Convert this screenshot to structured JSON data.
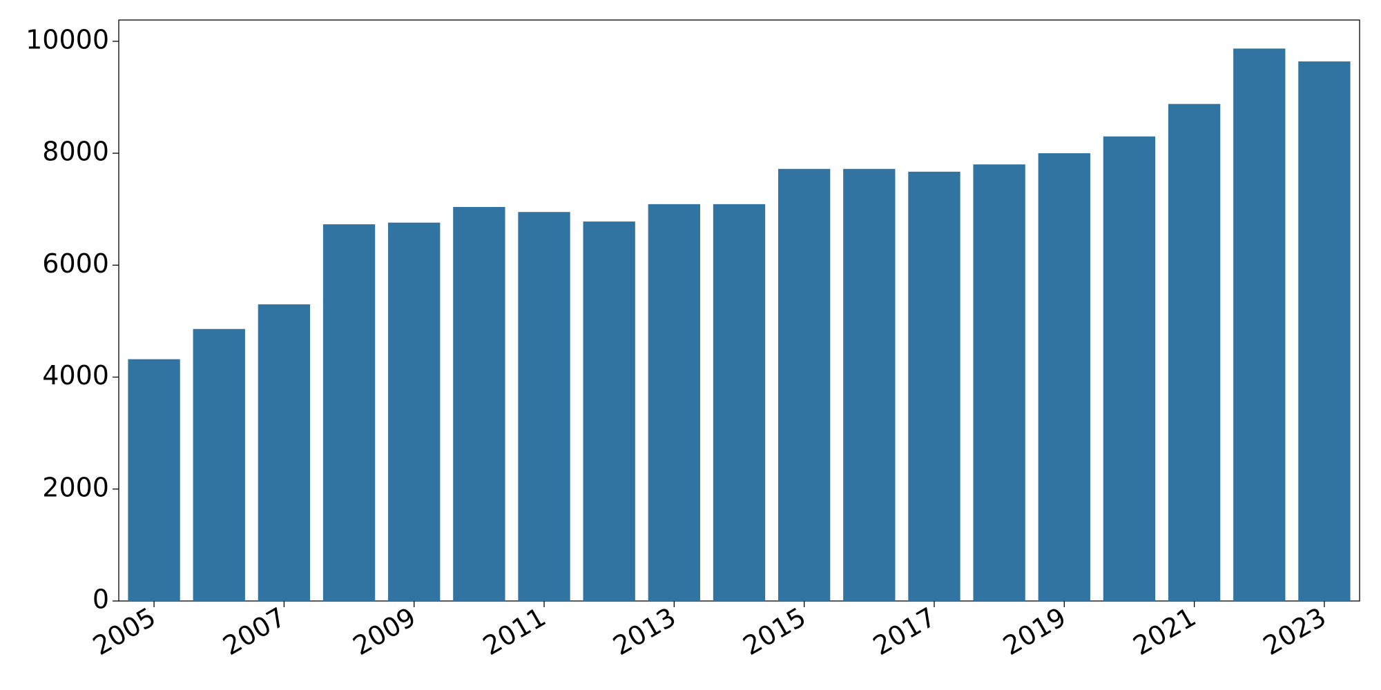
{
  "chart_data": {
    "type": "bar",
    "categories": [
      "2005",
      null,
      "2007",
      null,
      "2009",
      null,
      "2011",
      null,
      "2013",
      null,
      "2015",
      null,
      "2017",
      null,
      "2019",
      null,
      "2021",
      null,
      "2023"
    ],
    "values": [
      4320,
      4860,
      5300,
      6730,
      6760,
      7040,
      6950,
      6780,
      7090,
      7090,
      7720,
      7720,
      7670,
      7800,
      8000,
      8300,
      8880,
      9870,
      9640
    ],
    "color": "#3274a1",
    "ylim": [
      0,
      10380
    ],
    "yticks": [
      0,
      2000,
      4000,
      6000,
      8000,
      10000
    ],
    "grid": false
  }
}
